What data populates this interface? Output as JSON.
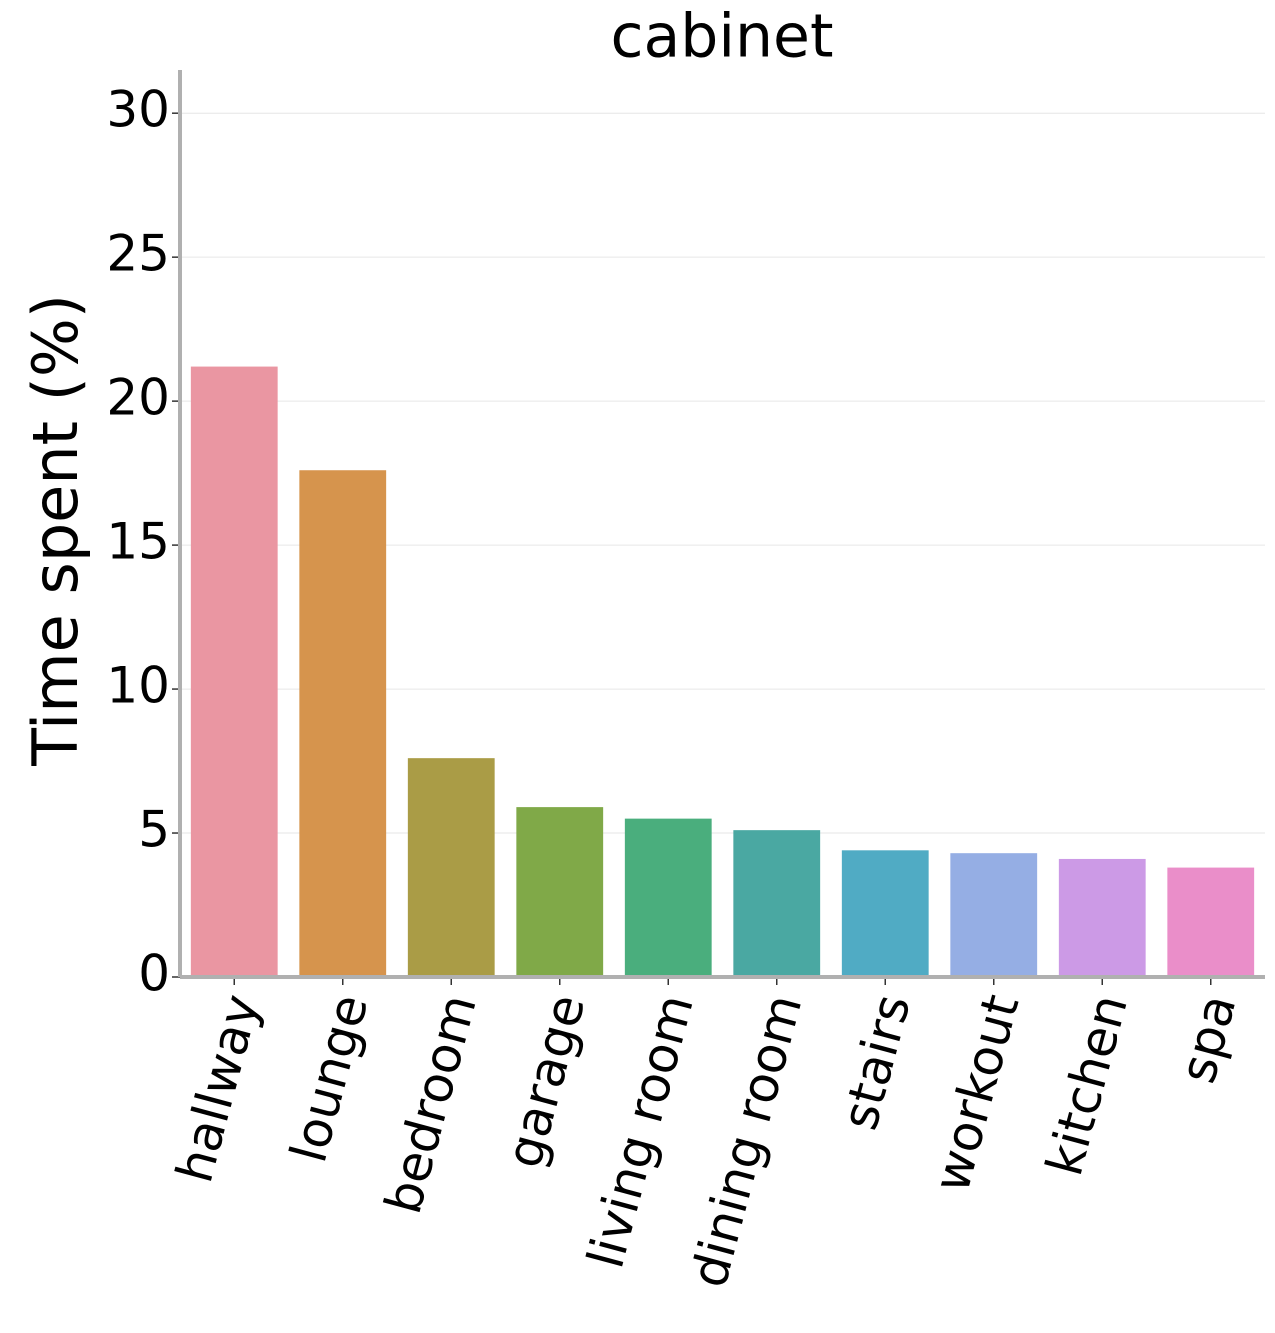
{
  "chart_data": {
    "type": "bar",
    "title": "cabinet",
    "ylabel": "Time spent (%)",
    "categories": [
      "hallway",
      "lounge",
      "bedroom",
      "garage",
      "living room",
      "dining room",
      "stairs",
      "workout",
      "kitchen",
      "spa"
    ],
    "values": [
      21.2,
      17.6,
      7.6,
      5.9,
      5.5,
      5.1,
      4.4,
      4.3,
      4.1,
      3.8
    ],
    "colors": [
      "#ea96a2",
      "#d6944d",
      "#aa9c46",
      "#80a948",
      "#4aae7d",
      "#4aa8a2",
      "#50abc4",
      "#95aee4",
      "#cc9ae6",
      "#ea8ec9"
    ],
    "ylim": [
      0,
      31.5
    ],
    "yticks": [
      0,
      5,
      10,
      15,
      20,
      25,
      30
    ],
    "grid": true
  }
}
